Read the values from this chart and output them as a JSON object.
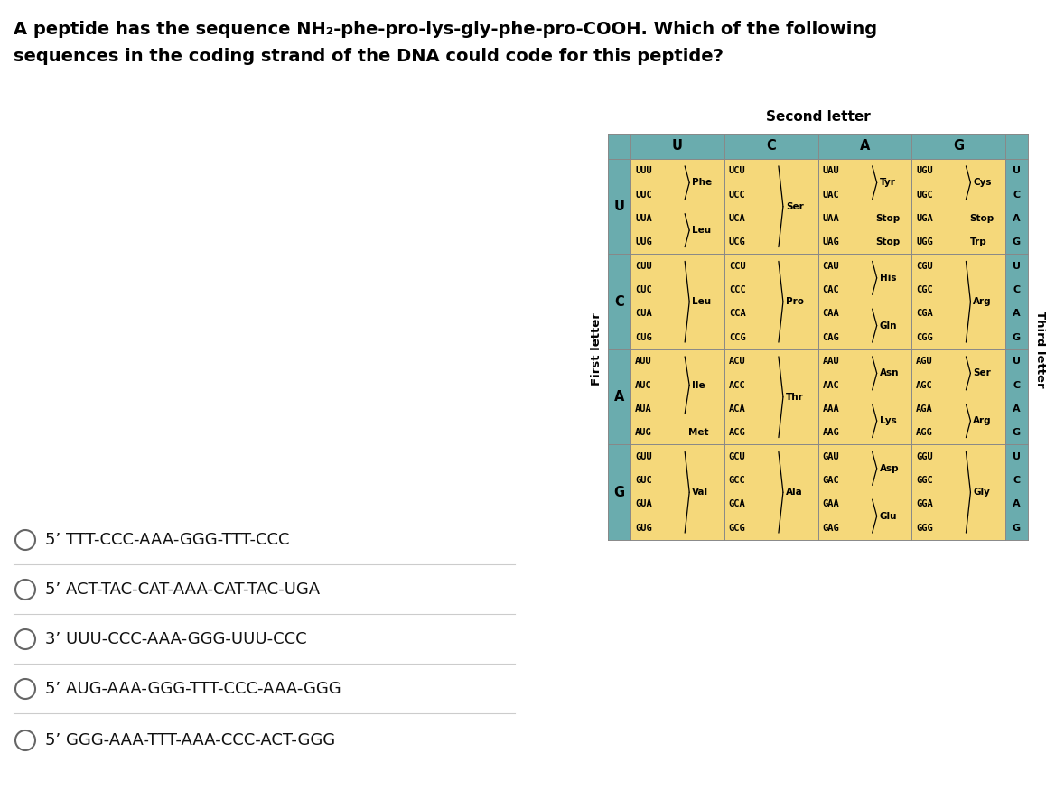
{
  "title_line1": "A peptide has the sequence NH₂-phe-pro-lys-gly-phe-pro-COOH. Which of the following",
  "title_line2": "sequences in the coding strand of the DNA could code for this peptide?",
  "options": [
    "5’ TTT-CCC-AAA-GGG-TTT-CCC",
    "5’ ACT-TAC-CAT-AAA-CAT-TAC-UGA",
    "3’ UUU-CCC-AAA-GGG-UUU-CCC",
    "5’ AUG-AAA-GGG-TTT-CCC-AAA-GGG",
    "5’ GGG-AAA-TTT-AAA-CCC-ACT-GGG"
  ],
  "second_letter_header": "Second letter",
  "first_letter_label": "First letter",
  "third_letter_label": "Third letter",
  "col_headers": [
    "U",
    "C",
    "A",
    "G"
  ],
  "row_headers": [
    "U",
    "C",
    "A",
    "G"
  ],
  "third_letters": [
    "U",
    "C",
    "A",
    "G"
  ],
  "header_bg": "#6aacae",
  "cell_bg": "#f5d87a",
  "codon_table": {
    "UU": [
      {
        "codons": [
          "UUU",
          "UUC"
        ],
        "aa": "Phe",
        "bracket": true
      },
      {
        "codons": [
          "UUA",
          "UUG"
        ],
        "aa": "Leu",
        "bracket": true
      }
    ],
    "UC": [
      {
        "codons": [
          "UCU",
          "UCC",
          "UCA",
          "UCG"
        ],
        "aa": "Ser",
        "bracket": true
      }
    ],
    "UA": [
      {
        "codons": [
          "UAU",
          "UAC"
        ],
        "aa": "Tyr",
        "bracket": true
      },
      {
        "codons": [
          "UAA"
        ],
        "aa": "Stop",
        "bracket": false
      },
      {
        "codons": [
          "UAG"
        ],
        "aa": "Stop",
        "bracket": false
      }
    ],
    "UG": [
      {
        "codons": [
          "UGU",
          "UGC"
        ],
        "aa": "Cys",
        "bracket": true
      },
      {
        "codons": [
          "UGA"
        ],
        "aa": "Stop",
        "bracket": false
      },
      {
        "codons": [
          "UGG"
        ],
        "aa": "Trp",
        "bracket": false
      }
    ],
    "CU": [
      {
        "codons": [
          "CUU",
          "CUC",
          "CUA",
          "CUG"
        ],
        "aa": "Leu",
        "bracket": true
      }
    ],
    "CC": [
      {
        "codons": [
          "CCU",
          "CCC",
          "CCA",
          "CCG"
        ],
        "aa": "Pro",
        "bracket": true
      }
    ],
    "CA": [
      {
        "codons": [
          "CAU",
          "CAC"
        ],
        "aa": "His",
        "bracket": true
      },
      {
        "codons": [
          "CAA",
          "CAG"
        ],
        "aa": "Gln",
        "bracket": true
      }
    ],
    "CG": [
      {
        "codons": [
          "CGU",
          "CGC",
          "CGA",
          "CGG"
        ],
        "aa": "Arg",
        "bracket": true
      }
    ],
    "AU": [
      {
        "codons": [
          "AUU",
          "AUC",
          "AUA"
        ],
        "aa": "Ile",
        "bracket": true
      },
      {
        "codons": [
          "AUG"
        ],
        "aa": "Met",
        "bracket": false
      }
    ],
    "AC": [
      {
        "codons": [
          "ACU",
          "ACC",
          "ACA",
          "ACG"
        ],
        "aa": "Thr",
        "bracket": true
      }
    ],
    "AA": [
      {
        "codons": [
          "AAU",
          "AAC"
        ],
        "aa": "Asn",
        "bracket": true
      },
      {
        "codons": [
          "AAA",
          "AAG"
        ],
        "aa": "Lys",
        "bracket": true
      }
    ],
    "AG": [
      {
        "codons": [
          "AGU",
          "AGC"
        ],
        "aa": "Ser",
        "bracket": true
      },
      {
        "codons": [
          "AGA",
          "AGG"
        ],
        "aa": "Arg",
        "bracket": true
      }
    ],
    "GU": [
      {
        "codons": [
          "GUU",
          "GUC",
          "GUA",
          "GUG"
        ],
        "aa": "Val",
        "bracket": true
      }
    ],
    "GC": [
      {
        "codons": [
          "GCU",
          "GCC",
          "GCA",
          "GCG"
        ],
        "aa": "Ala",
        "bracket": true
      }
    ],
    "GA": [
      {
        "codons": [
          "GAU",
          "GAC"
        ],
        "aa": "Asp",
        "bracket": true
      },
      {
        "codons": [
          "GAA",
          "GAG"
        ],
        "aa": "Glu",
        "bracket": true
      }
    ],
    "GG": [
      {
        "codons": [
          "GGU",
          "GGC",
          "GGA",
          "GGG"
        ],
        "aa": "Gly",
        "bracket": true
      }
    ]
  }
}
